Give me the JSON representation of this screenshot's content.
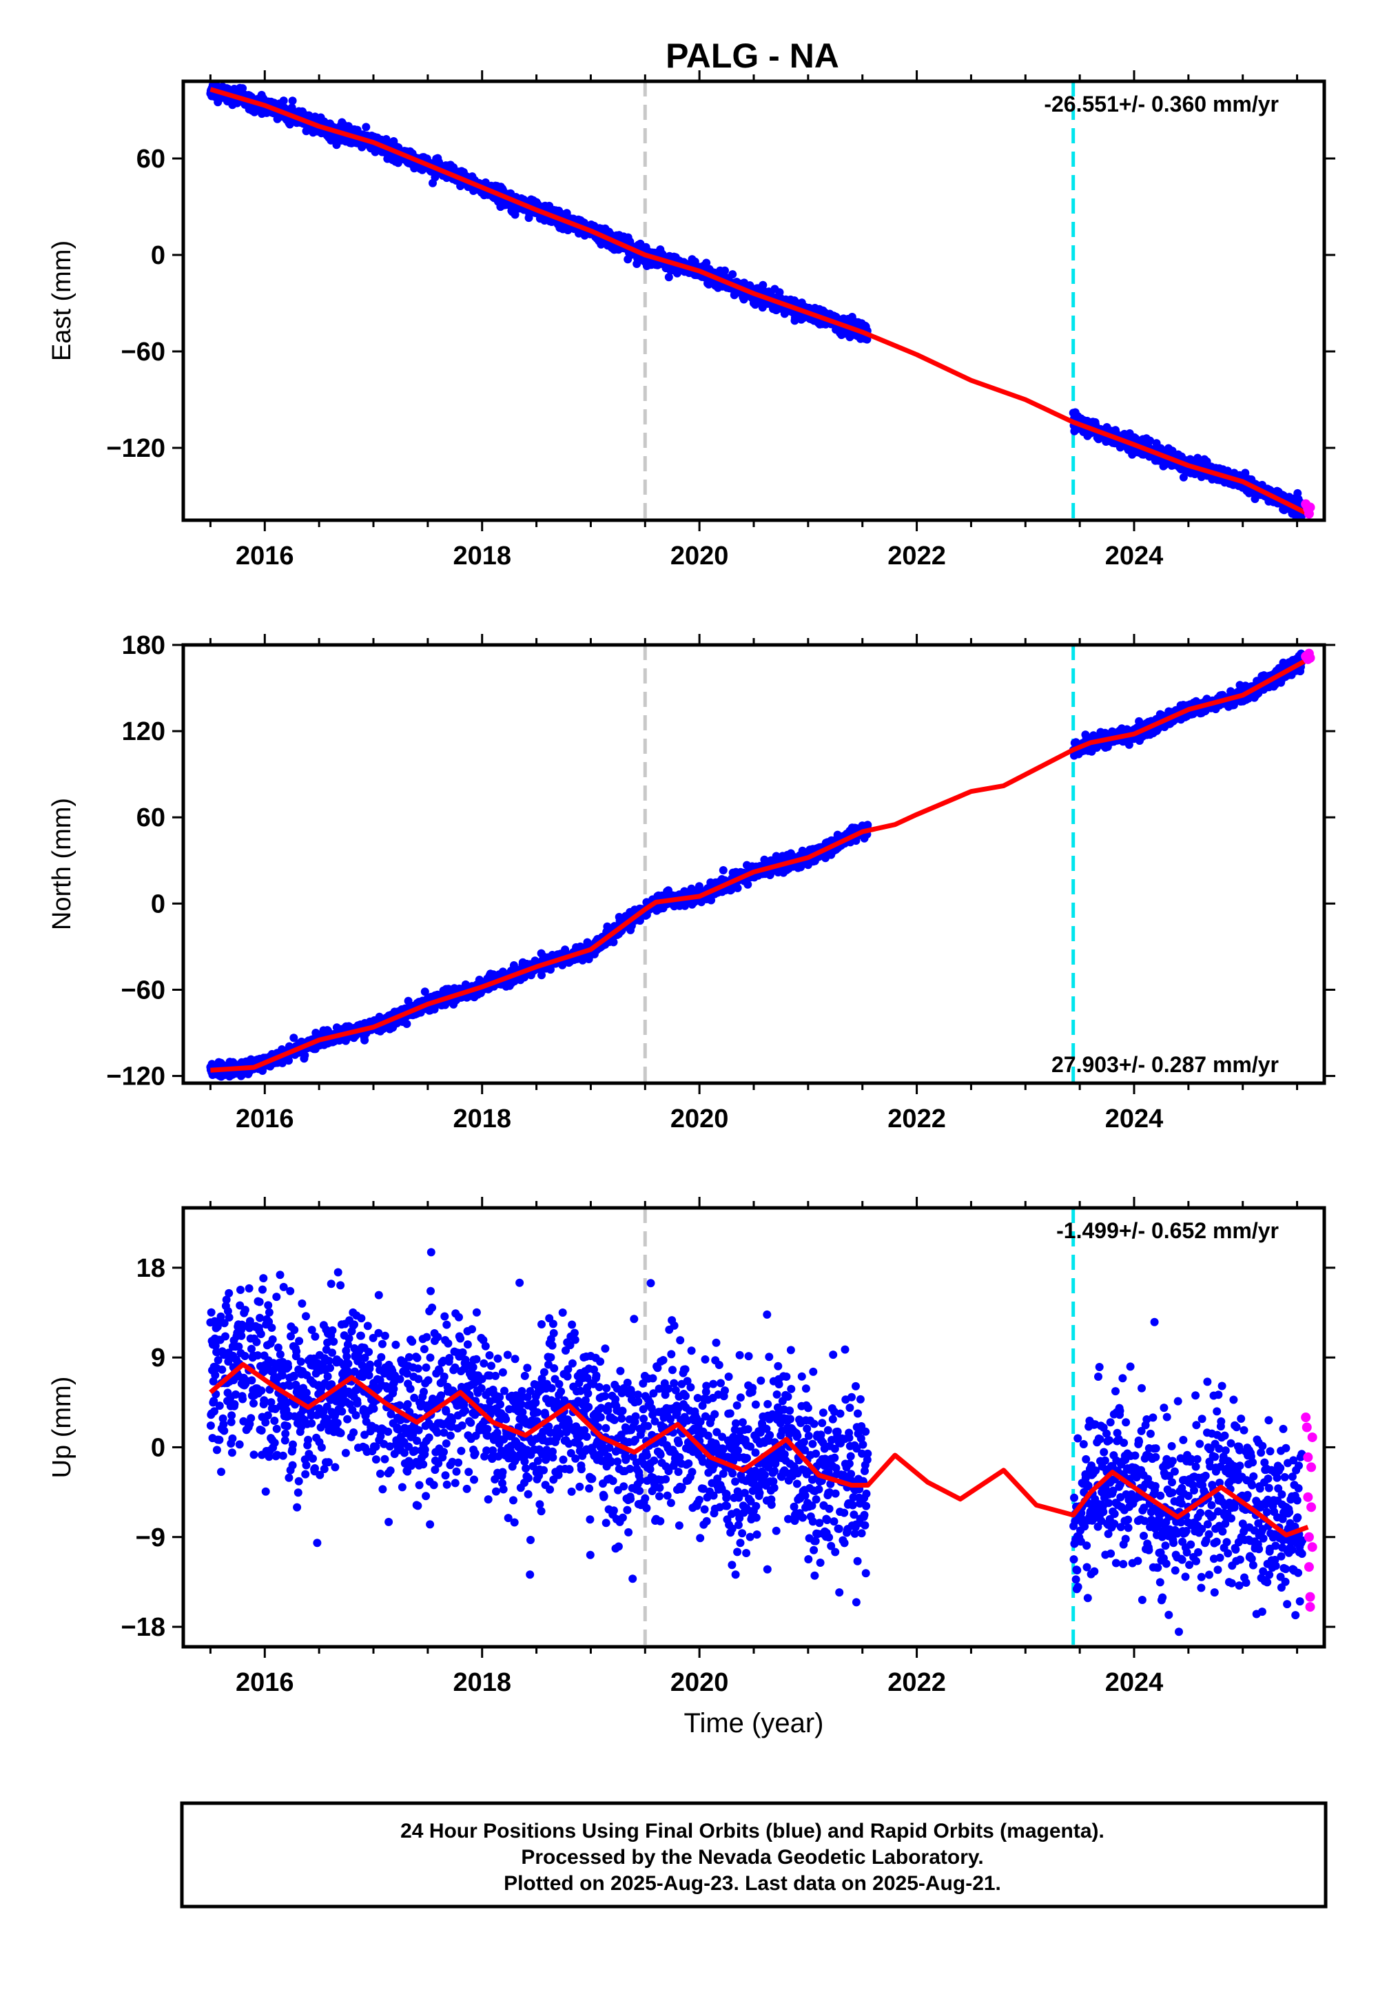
{
  "title": "PALG - NA",
  "footer": {
    "line1": "24 Hour Positions Using Final Orbits (blue) and Rapid Orbits (magenta).",
    "line2": "Processed by the Nevada Geodetic Laboratory.",
    "line3": "Plotted on 2025-Aug-23. Last data on 2025-Aug-21."
  },
  "chart_data": [
    {
      "type": "scatter",
      "panel": "east",
      "ylabel": "East (mm)",
      "xlabel": "",
      "xlim": [
        2015.25,
        2025.75
      ],
      "ylim": [
        -165,
        108
      ],
      "x_ticks": [
        2016,
        2018,
        2020,
        2022,
        2024
      ],
      "y_ticks": [
        -120,
        -60,
        0,
        60
      ],
      "grid": false,
      "rate_text": "-26.551+/- 0.360 mm/yr",
      "rate_position": "top-right",
      "vlines": [
        {
          "x": 2019.5,
          "color": "#c8c8c8",
          "style": "dashed"
        },
        {
          "x": 2023.44,
          "color": "#00e5ee",
          "style": "dashed"
        }
      ],
      "colors": {
        "final": "#0000ff",
        "rapid": "#ff00ff",
        "model": "#ff0000"
      },
      "model_line": {
        "x": [
          2015.5,
          2016.0,
          2016.5,
          2017.0,
          2017.5,
          2018.0,
          2018.5,
          2019.0,
          2019.5,
          2020.0,
          2020.5,
          2021.0,
          2021.5,
          2022.0,
          2022.5,
          2023.0,
          2023.44,
          2024.0,
          2024.5,
          2025.0,
          2025.6
        ],
        "y": [
          103,
          93,
          80,
          70,
          56,
          42,
          28,
          15,
          0,
          -10,
          -24,
          -36,
          -48,
          -62,
          -78,
          -90,
          -104,
          -118,
          -131,
          -141,
          -161
        ]
      },
      "final_ranges": [
        [
          2015.5,
          2021.55
        ],
        [
          2023.44,
          2025.55
        ]
      ],
      "final_noise_mm": 2.5,
      "rapid_points": {
        "x": [
          2025.58,
          2025.6,
          2025.61,
          2025.62
        ],
        "y": [
          -155,
          -158,
          -161,
          -157
        ]
      }
    },
    {
      "type": "scatter",
      "panel": "north",
      "ylabel": "North (mm)",
      "xlabel": "",
      "xlim": [
        2015.25,
        2025.75
      ],
      "ylim": [
        -125,
        180
      ],
      "x_ticks": [
        2016,
        2018,
        2020,
        2022,
        2024
      ],
      "y_ticks": [
        -120,
        -60,
        0,
        60,
        120,
        180
      ],
      "grid": false,
      "rate_text": "27.903+/- 0.287 mm/yr",
      "rate_position": "bottom-right",
      "vlines": [
        {
          "x": 2019.5,
          "color": "#c8c8c8",
          "style": "dashed"
        },
        {
          "x": 2023.44,
          "color": "#00e5ee",
          "style": "dashed"
        }
      ],
      "colors": {
        "final": "#0000ff",
        "rapid": "#ff00ff",
        "model": "#ff0000"
      },
      "model_line": {
        "x": [
          2015.5,
          2015.9,
          2016.5,
          2017.0,
          2017.5,
          2018.0,
          2018.5,
          2019.0,
          2019.5,
          2019.6,
          2020.0,
          2020.5,
          2021.0,
          2021.5,
          2021.8,
          2022.0,
          2022.5,
          2022.8,
          2023.44,
          2023.6,
          2024.0,
          2024.5,
          2025.0,
          2025.6
        ],
        "y": [
          -116,
          -114,
          -95,
          -86,
          -70,
          -58,
          -44,
          -32,
          -4,
          1,
          5,
          22,
          32,
          50,
          55,
          62,
          78,
          82,
          107,
          112,
          118,
          135,
          145,
          170
        ]
      },
      "final_ranges": [
        [
          2015.5,
          2021.55
        ],
        [
          2023.44,
          2025.55
        ]
      ],
      "final_noise_mm": 2.5,
      "rapid_points": {
        "x": [
          2025.58,
          2025.6,
          2025.61,
          2025.62
        ],
        "y": [
          172,
          170,
          174,
          171
        ]
      }
    },
    {
      "type": "scatter",
      "panel": "up",
      "ylabel": "Up (mm)",
      "xlabel": "Time (year)",
      "xlim": [
        2015.25,
        2025.75
      ],
      "ylim": [
        -20,
        24
      ],
      "x_ticks": [
        2016,
        2018,
        2020,
        2022,
        2024
      ],
      "y_ticks": [
        -18,
        -9,
        0,
        9,
        18
      ],
      "grid": false,
      "rate_text": "-1.499+/- 0.652 mm/yr",
      "rate_position": "top-right",
      "vlines": [
        {
          "x": 2019.5,
          "color": "#c8c8c8",
          "style": "dashed"
        },
        {
          "x": 2023.44,
          "color": "#00e5ee",
          "style": "dashed"
        }
      ],
      "colors": {
        "final": "#0000ff",
        "rapid": "#ff00ff",
        "model": "#ff0000"
      },
      "model_line": {
        "x": [
          2015.5,
          2015.8,
          2016.1,
          2016.4,
          2016.8,
          2017.1,
          2017.4,
          2017.8,
          2018.1,
          2018.4,
          2018.8,
          2019.1,
          2019.4,
          2019.8,
          2020.1,
          2020.4,
          2020.8,
          2021.1,
          2021.4,
          2021.55,
          2021.8,
          2022.1,
          2022.4,
          2022.8,
          2023.1,
          2023.44,
          2023.6,
          2023.8,
          2024.1,
          2024.4,
          2024.8,
          2025.1,
          2025.4,
          2025.6
        ],
        "y": [
          5.5,
          8.3,
          6.0,
          4.0,
          7.0,
          4.5,
          2.5,
          5.5,
          2.5,
          1.2,
          4.2,
          1.0,
          -0.5,
          2.3,
          -1.0,
          -2.3,
          0.8,
          -2.8,
          -3.8,
          -3.8,
          -0.8,
          -3.5,
          -5.2,
          -2.3,
          -5.8,
          -6.8,
          -4.5,
          -2.5,
          -4.8,
          -7.0,
          -4.0,
          -6.3,
          -8.8,
          -8.0
        ]
      },
      "final_ranges": [
        [
          2015.5,
          2021.55
        ],
        [
          2023.44,
          2025.55
        ]
      ],
      "final_noise_mm": 4.2,
      "rapid_points": {
        "x": [
          2025.58,
          2025.59,
          2025.6,
          2025.6,
          2025.61,
          2025.61,
          2025.62,
          2025.62,
          2025.63,
          2025.63,
          2025.64,
          2025.64
        ],
        "y": [
          3,
          2,
          -1,
          -5,
          -9,
          -12,
          -15,
          -16,
          -2,
          -6,
          -10,
          1
        ]
      }
    }
  ]
}
